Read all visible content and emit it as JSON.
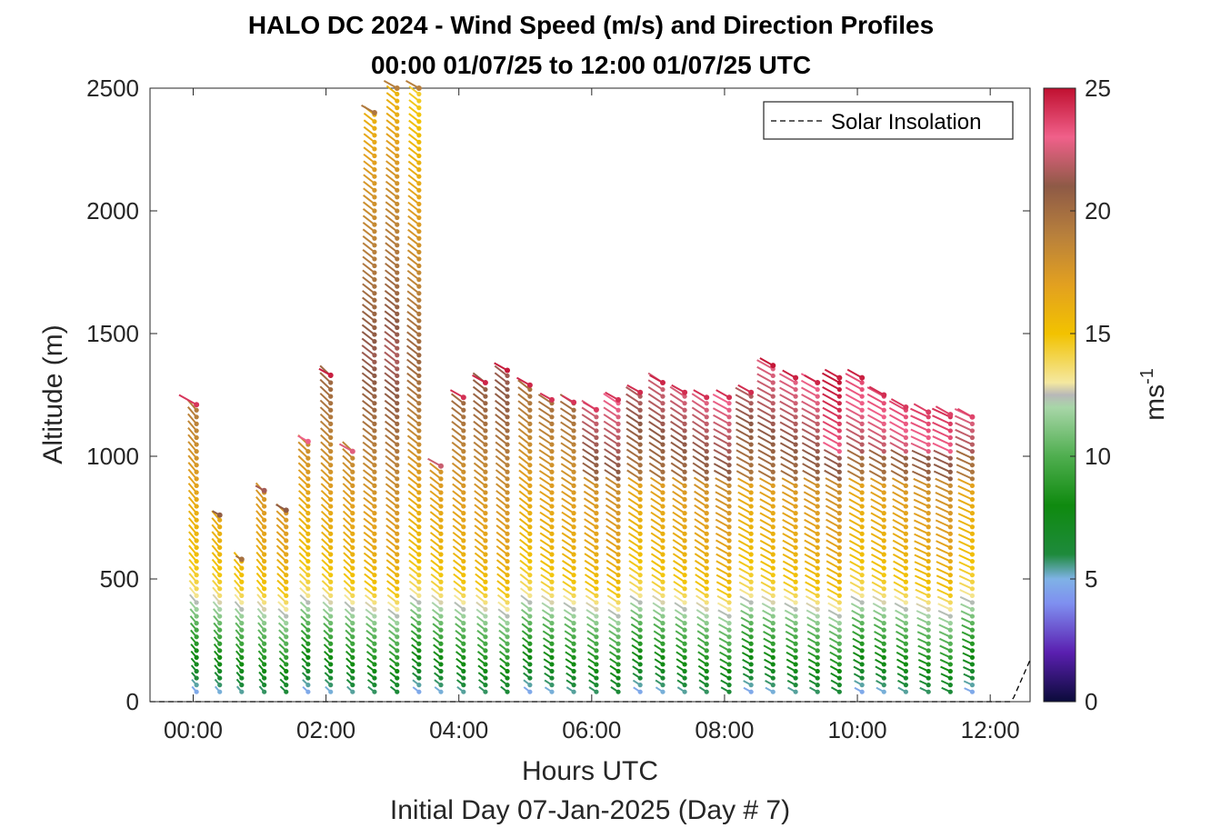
{
  "chart_data": {
    "type": "scatter",
    "title": "HALO DC 2024 - Wind Speed (m/s) and Direction Profiles",
    "subtitle": "00:00 01/07/25 to 12:00 01/07/25  UTC",
    "xlabel": "Hours UTC",
    "xlabel2": "Initial Day 07-Jan-2025 (Day # 7)",
    "ylabel": "Altitude (m)",
    "xlim": [
      -0.65,
      12.6
    ],
    "ylim": [
      0,
      2500
    ],
    "x_ticks": [
      0,
      2,
      4,
      6,
      8,
      10,
      12
    ],
    "x_tick_labels": [
      "00:00",
      "02:00",
      "04:00",
      "06:00",
      "08:00",
      "10:00",
      "12:00"
    ],
    "y_ticks": [
      0,
      500,
      1000,
      1500,
      2000,
      2500
    ],
    "y_tick_labels": [
      "0",
      "500",
      "1000",
      "1500",
      "2000",
      "2500"
    ],
    "grid": false,
    "legend": {
      "position": "top-right",
      "entries": [
        "Solar Insolation"
      ]
    },
    "colorbar": {
      "label": "ms",
      "label_superscript": "-1",
      "range": [
        0,
        25
      ],
      "ticks": [
        0,
        5,
        10,
        15,
        20,
        25
      ],
      "tick_labels": [
        "0",
        "5",
        "10",
        "15",
        "20",
        "25"
      ],
      "stops": [
        [
          0,
          "#0b0b3a"
        ],
        [
          2,
          "#5a1fb0"
        ],
        [
          4,
          "#7f8ff0"
        ],
        [
          5,
          "#7fb2e6"
        ],
        [
          6,
          "#1e8a3c"
        ],
        [
          8,
          "#0f8a0f"
        ],
        [
          10,
          "#4fae4f"
        ],
        [
          12,
          "#a8d6a8"
        ],
        [
          12.5,
          "#b8b8b8"
        ],
        [
          13,
          "#f4e8a0"
        ],
        [
          15,
          "#f2c200"
        ],
        [
          17,
          "#e2a020"
        ],
        [
          19,
          "#b8803c"
        ],
        [
          21,
          "#8e5a46"
        ],
        [
          23,
          "#f0608a"
        ],
        [
          25,
          "#c01030"
        ]
      ]
    },
    "solar_insolation": {
      "times": [
        -0.65,
        12.3,
        12.35,
        12.6
      ],
      "values": [
        0,
        0,
        15,
        170
      ]
    },
    "profiles": [
      {
        "time": 0.05,
        "top": 1210,
        "lead": 12,
        "dir": 205
      },
      {
        "time": 0.4,
        "top": 760,
        "lead": 5,
        "dir": 205
      },
      {
        "time": 0.73,
        "top": 580,
        "lead": 4,
        "dir": 205
      },
      {
        "time": 1.07,
        "top": 860,
        "lead": 6,
        "dir": 205
      },
      {
        "time": 1.4,
        "top": 780,
        "lead": 7,
        "dir": 210
      },
      {
        "time": 1.73,
        "top": 1060,
        "lead": 7,
        "dir": 210
      },
      {
        "time": 2.07,
        "top": 1330,
        "lead": 8,
        "dir": 210
      },
      {
        "time": 2.4,
        "top": 1020,
        "lead": 9,
        "dir": 210
      },
      {
        "time": 2.73,
        "top": 2400,
        "lead": 9,
        "dir": 215
      },
      {
        "time": 3.07,
        "top": 2500,
        "lead": 9,
        "dir": 215
      },
      {
        "time": 3.4,
        "top": 2500,
        "lead": 9,
        "dir": 215
      },
      {
        "time": 3.73,
        "top": 960,
        "lead": 9,
        "dir": 215
      },
      {
        "time": 4.07,
        "top": 1240,
        "lead": 9,
        "dir": 215
      },
      {
        "time": 4.4,
        "top": 1300,
        "lead": 9,
        "dir": 215
      },
      {
        "time": 4.73,
        "top": 1350,
        "lead": 9,
        "dir": 215
      },
      {
        "time": 5.07,
        "top": 1290,
        "lead": 9,
        "dir": 215
      },
      {
        "time": 5.4,
        "top": 1230,
        "lead": 8,
        "dir": 220
      },
      {
        "time": 5.73,
        "top": 1220,
        "lead": 8,
        "dir": 220
      },
      {
        "time": 6.07,
        "top": 1190,
        "lead": 9,
        "dir": 220
      },
      {
        "time": 6.4,
        "top": 1230,
        "lead": 9,
        "dir": 220
      },
      {
        "time": 6.73,
        "top": 1260,
        "lead": 9,
        "dir": 220
      },
      {
        "time": 7.07,
        "top": 1300,
        "lead": 9,
        "dir": 220
      },
      {
        "time": 7.4,
        "top": 1260,
        "lead": 9,
        "dir": 220
      },
      {
        "time": 7.73,
        "top": 1240,
        "lead": 9,
        "dir": 220
      },
      {
        "time": 8.07,
        "top": 1240,
        "lead": 9,
        "dir": 225
      },
      {
        "time": 8.4,
        "top": 1260,
        "lead": 9,
        "dir": 225
      },
      {
        "time": 8.73,
        "top": 1370,
        "lead": 9,
        "dir": 225
      },
      {
        "time": 9.07,
        "top": 1320,
        "lead": 9,
        "dir": 225
      },
      {
        "time": 9.4,
        "top": 1300,
        "lead": 9,
        "dir": 225
      },
      {
        "time": 9.73,
        "top": 1320,
        "lead": 10,
        "dir": 225
      },
      {
        "time": 10.07,
        "top": 1320,
        "lead": 10,
        "dir": 225
      },
      {
        "time": 10.4,
        "top": 1250,
        "lead": 10,
        "dir": 225
      },
      {
        "time": 10.73,
        "top": 1200,
        "lead": 10,
        "dir": 225
      },
      {
        "time": 11.07,
        "top": 1180,
        "lead": 10,
        "dir": 230
      },
      {
        "time": 11.4,
        "top": 1170,
        "lead": 10,
        "dir": 230
      },
      {
        "time": 11.73,
        "top": 1160,
        "lead": 10,
        "dir": 230
      }
    ],
    "speed_by_altitude": {
      "altitude": [
        0,
        150,
        300,
        400,
        450,
        600,
        800,
        1000,
        1200,
        1400,
        2500
      ],
      "speed": [
        4.5,
        8,
        10.5,
        13,
        14.5,
        16,
        17,
        18.5,
        20,
        21,
        15
      ]
    }
  }
}
